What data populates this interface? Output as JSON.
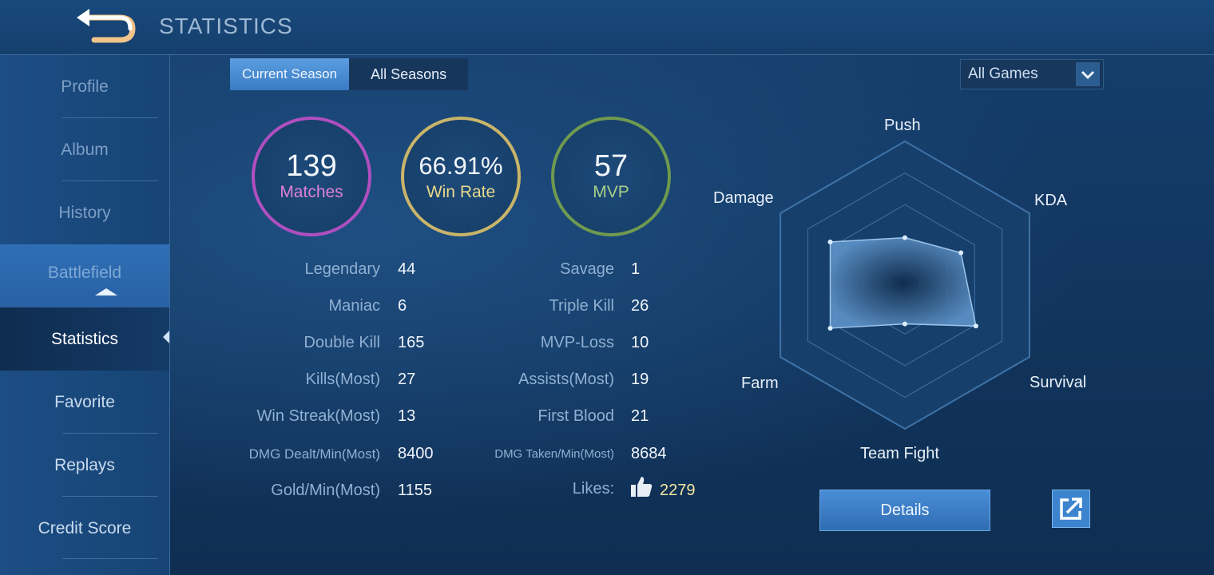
{
  "header": {
    "title": "STATISTICS",
    "back_icon": "back-arrow-icon"
  },
  "sidebar": {
    "items": [
      {
        "label": "Profile"
      },
      {
        "label": "Album"
      },
      {
        "label": "History"
      },
      {
        "label": "Battlefield"
      },
      {
        "label": "Statistics"
      },
      {
        "label": "Favorite"
      },
      {
        "label": "Replays"
      },
      {
        "label": "Credit Score"
      }
    ],
    "active": "Statistics"
  },
  "tabs": {
    "current": "Current Season",
    "all": "All Seasons"
  },
  "filter": {
    "selected": "All Games"
  },
  "summary": {
    "matches": {
      "value": "139",
      "label": "Matches",
      "color": "#b04fc0"
    },
    "win_rate": {
      "value": "66.91%",
      "label": "Win Rate",
      "color": "#c9b56a"
    },
    "mvp": {
      "value": "57",
      "label": "MVP",
      "color": "#6f9a4f"
    }
  },
  "stats_left": [
    {
      "label": "Legendary",
      "value": "44"
    },
    {
      "label": "Maniac",
      "value": "6"
    },
    {
      "label": "Double Kill",
      "value": "165"
    },
    {
      "label": "Kills(Most)",
      "value": "27"
    },
    {
      "label": "Win Streak(Most)",
      "value": "13"
    },
    {
      "label": "DMG Dealt/Min(Most)",
      "value": "8400"
    },
    {
      "label": "Gold/Min(Most)",
      "value": "1155"
    }
  ],
  "stats_right": [
    {
      "label": "Savage",
      "value": "1"
    },
    {
      "label": "Triple Kill",
      "value": "26"
    },
    {
      "label": "MVP-Loss",
      "value": "10"
    },
    {
      "label": "Assists(Most)",
      "value": "19"
    },
    {
      "label": "First Blood",
      "value": "21"
    },
    {
      "label": "DMG Taken/Min(Most)",
      "value": "8684"
    }
  ],
  "likes": {
    "label": "Likes:",
    "value": "2279"
  },
  "radar": {
    "axes": [
      "Push",
      "KDA",
      "Survival",
      "Team Fight",
      "Farm",
      "Damage"
    ],
    "values": [
      0.55,
      0.75,
      0.95,
      0.45,
      1.0,
      1.0
    ]
  },
  "actions": {
    "details": "Details",
    "share_icon": "share-external-icon"
  }
}
